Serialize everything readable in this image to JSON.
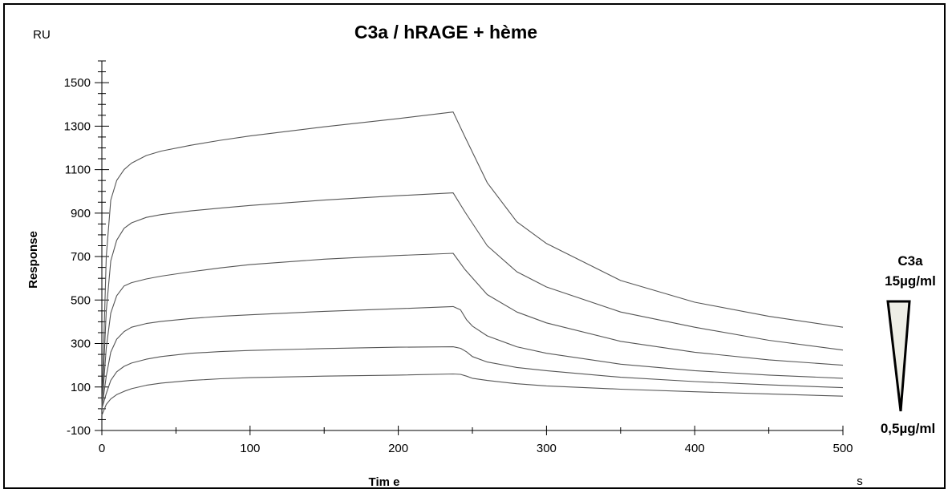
{
  "chart_data": {
    "type": "line",
    "title": "C3a / hRAGE + hème",
    "xlabel": "Tim e",
    "ylabel": "Response",
    "y_unit": "RU",
    "x_unit": "s",
    "xlim": [
      0,
      500
    ],
    "ylim": [
      -100,
      1600
    ],
    "x_ticks": [
      0,
      100,
      200,
      300,
      400,
      500
    ],
    "y_ticks": [
      -100,
      100,
      300,
      500,
      700,
      900,
      1100,
      1300,
      1500
    ],
    "grid": false,
    "series": [
      {
        "x": [
          0,
          3,
          6,
          10,
          15,
          20,
          30,
          40,
          60,
          80,
          100,
          150,
          200,
          237,
          245,
          260,
          280,
          300,
          350,
          400,
          450,
          500
        ],
        "values": [
          0,
          700,
          960,
          1050,
          1100,
          1130,
          1165,
          1185,
          1212,
          1235,
          1255,
          1297,
          1335,
          1365,
          1250,
          1040,
          860,
          760,
          590,
          490,
          425,
          375
        ]
      },
      {
        "x": [
          0,
          3,
          6,
          10,
          15,
          20,
          30,
          40,
          60,
          80,
          100,
          150,
          200,
          237,
          245,
          260,
          280,
          300,
          350,
          400,
          450,
          500
        ],
        "values": [
          0,
          450,
          680,
          775,
          830,
          855,
          880,
          893,
          910,
          923,
          935,
          960,
          980,
          993,
          905,
          750,
          630,
          560,
          445,
          375,
          315,
          270
        ]
      },
      {
        "x": [
          0,
          3,
          6,
          10,
          15,
          20,
          30,
          40,
          60,
          80,
          100,
          150,
          200,
          237,
          245,
          260,
          280,
          300,
          350,
          400,
          450,
          500
        ],
        "values": [
          0,
          280,
          440,
          520,
          565,
          580,
          597,
          610,
          630,
          648,
          663,
          688,
          705,
          715,
          640,
          525,
          445,
          395,
          310,
          260,
          225,
          200
        ]
      },
      {
        "x": [
          0,
          3,
          6,
          10,
          15,
          20,
          30,
          40,
          60,
          80,
          100,
          150,
          200,
          237,
          242,
          246,
          250,
          260,
          280,
          300,
          350,
          400,
          450,
          500
        ],
        "values": [
          0,
          150,
          260,
          320,
          355,
          375,
          392,
          402,
          415,
          425,
          432,
          448,
          460,
          470,
          455,
          410,
          380,
          335,
          285,
          255,
          205,
          175,
          155,
          140
        ]
      },
      {
        "x": [
          0,
          3,
          6,
          10,
          15,
          20,
          30,
          40,
          60,
          80,
          100,
          150,
          200,
          237,
          242,
          246,
          250,
          260,
          280,
          300,
          350,
          400,
          450,
          500
        ],
        "values": [
          0,
          70,
          130,
          170,
          195,
          210,
          228,
          240,
          255,
          263,
          268,
          277,
          283,
          285,
          278,
          262,
          240,
          215,
          190,
          175,
          145,
          125,
          110,
          97
        ]
      },
      {
        "x": [
          0,
          3,
          6,
          10,
          15,
          20,
          30,
          40,
          60,
          80,
          100,
          150,
          200,
          237,
          242,
          246,
          250,
          260,
          280,
          300,
          350,
          400,
          450,
          500
        ],
        "values": [
          -30,
          20,
          45,
          65,
          80,
          92,
          108,
          118,
          130,
          138,
          143,
          150,
          155,
          160,
          158,
          150,
          140,
          130,
          115,
          105,
          90,
          78,
          68,
          58
        ]
      }
    ]
  },
  "legend": {
    "analyte": "C3a",
    "high": "15µg/ml",
    "low": "0,5µg/ml"
  }
}
